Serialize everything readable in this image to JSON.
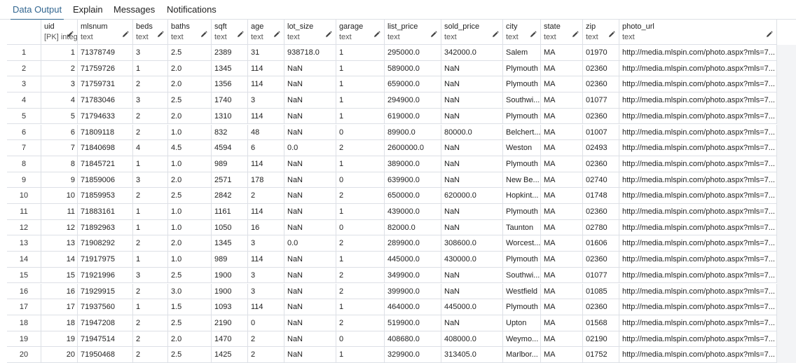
{
  "tabs": [
    {
      "label": "Data Output",
      "active": true
    },
    {
      "label": "Explain",
      "active": false
    },
    {
      "label": "Messages",
      "active": false
    },
    {
      "label": "Notifications",
      "active": false
    }
  ],
  "columns": [
    {
      "name": "uid",
      "type": "[PK] integer"
    },
    {
      "name": "mlsnum",
      "type": "text"
    },
    {
      "name": "beds",
      "type": "text"
    },
    {
      "name": "baths",
      "type": "text"
    },
    {
      "name": "sqft",
      "type": "text"
    },
    {
      "name": "age",
      "type": "text"
    },
    {
      "name": "lot_size",
      "type": "text"
    },
    {
      "name": "garage",
      "type": "text"
    },
    {
      "name": "list_price",
      "type": "text"
    },
    {
      "name": "sold_price",
      "type": "text"
    },
    {
      "name": "city",
      "type": "text"
    },
    {
      "name": "state",
      "type": "text"
    },
    {
      "name": "zip",
      "type": "text"
    },
    {
      "name": "photo_url",
      "type": "text"
    }
  ],
  "rows": [
    [
      "1",
      "1",
      "71378749",
      "3",
      "2.5",
      "2389",
      "31",
      "938718.0",
      "1",
      "295000.0",
      "342000.0",
      "Salem",
      "MA",
      "01970",
      "http://media.mlspin.com/photo.aspx?mls=7..."
    ],
    [
      "2",
      "2",
      "71759726",
      "1",
      "2.0",
      "1345",
      "114",
      "NaN",
      "1",
      "589000.0",
      "NaN",
      "Plymouth",
      "MA",
      "02360",
      "http://media.mlspin.com/photo.aspx?mls=7..."
    ],
    [
      "3",
      "3",
      "71759731",
      "2",
      "2.0",
      "1356",
      "114",
      "NaN",
      "1",
      "659000.0",
      "NaN",
      "Plymouth",
      "MA",
      "02360",
      "http://media.mlspin.com/photo.aspx?mls=7..."
    ],
    [
      "4",
      "4",
      "71783046",
      "3",
      "2.5",
      "1740",
      "3",
      "NaN",
      "1",
      "294900.0",
      "NaN",
      "Southwi...",
      "MA",
      "01077",
      "http://media.mlspin.com/photo.aspx?mls=7..."
    ],
    [
      "5",
      "5",
      "71794633",
      "2",
      "2.0",
      "1310",
      "114",
      "NaN",
      "1",
      "619000.0",
      "NaN",
      "Plymouth",
      "MA",
      "02360",
      "http://media.mlspin.com/photo.aspx?mls=7..."
    ],
    [
      "6",
      "6",
      "71809118",
      "2",
      "1.0",
      "832",
      "48",
      "NaN",
      "0",
      "89900.0",
      "80000.0",
      "Belchert...",
      "MA",
      "01007",
      "http://media.mlspin.com/photo.aspx?mls=7..."
    ],
    [
      "7",
      "7",
      "71840698",
      "4",
      "4.5",
      "4594",
      "6",
      "0.0",
      "2",
      "2600000.0",
      "NaN",
      "Weston",
      "MA",
      "02493",
      "http://media.mlspin.com/photo.aspx?mls=7..."
    ],
    [
      "8",
      "8",
      "71845721",
      "1",
      "1.0",
      "989",
      "114",
      "NaN",
      "1",
      "389000.0",
      "NaN",
      "Plymouth",
      "MA",
      "02360",
      "http://media.mlspin.com/photo.aspx?mls=7..."
    ],
    [
      "9",
      "9",
      "71859006",
      "3",
      "2.0",
      "2571",
      "178",
      "NaN",
      "0",
      "639900.0",
      "NaN",
      "New Be...",
      "MA",
      "02740",
      "http://media.mlspin.com/photo.aspx?mls=7..."
    ],
    [
      "10",
      "10",
      "71859953",
      "2",
      "2.5",
      "2842",
      "2",
      "NaN",
      "2",
      "650000.0",
      "620000.0",
      "Hopkint...",
      "MA",
      "01748",
      "http://media.mlspin.com/photo.aspx?mls=7..."
    ],
    [
      "11",
      "11",
      "71883161",
      "1",
      "1.0",
      "1161",
      "114",
      "NaN",
      "1",
      "439000.0",
      "NaN",
      "Plymouth",
      "MA",
      "02360",
      "http://media.mlspin.com/photo.aspx?mls=7..."
    ],
    [
      "12",
      "12",
      "71892963",
      "1",
      "1.0",
      "1050",
      "16",
      "NaN",
      "0",
      "82000.0",
      "NaN",
      "Taunton",
      "MA",
      "02780",
      "http://media.mlspin.com/photo.aspx?mls=7..."
    ],
    [
      "13",
      "13",
      "71908292",
      "2",
      "2.0",
      "1345",
      "3",
      "0.0",
      "2",
      "289900.0",
      "308600.0",
      "Worcest...",
      "MA",
      "01606",
      "http://media.mlspin.com/photo.aspx?mls=7..."
    ],
    [
      "14",
      "14",
      "71917975",
      "1",
      "1.0",
      "989",
      "114",
      "NaN",
      "1",
      "445000.0",
      "430000.0",
      "Plymouth",
      "MA",
      "02360",
      "http://media.mlspin.com/photo.aspx?mls=7..."
    ],
    [
      "15",
      "15",
      "71921996",
      "3",
      "2.5",
      "1900",
      "3",
      "NaN",
      "2",
      "349900.0",
      "NaN",
      "Southwi...",
      "MA",
      "01077",
      "http://media.mlspin.com/photo.aspx?mls=7..."
    ],
    [
      "16",
      "16",
      "71929915",
      "2",
      "3.0",
      "1900",
      "3",
      "NaN",
      "2",
      "399900.0",
      "NaN",
      "Westfield",
      "MA",
      "01085",
      "http://media.mlspin.com/photo.aspx?mls=7..."
    ],
    [
      "17",
      "17",
      "71937560",
      "1",
      "1.5",
      "1093",
      "114",
      "NaN",
      "1",
      "464000.0",
      "445000.0",
      "Plymouth",
      "MA",
      "02360",
      "http://media.mlspin.com/photo.aspx?mls=7..."
    ],
    [
      "18",
      "18",
      "71947208",
      "2",
      "2.5",
      "2190",
      "0",
      "NaN",
      "2",
      "519900.0",
      "NaN",
      "Upton",
      "MA",
      "01568",
      "http://media.mlspin.com/photo.aspx?mls=7..."
    ],
    [
      "19",
      "19",
      "71947514",
      "2",
      "2.0",
      "1470",
      "2",
      "NaN",
      "0",
      "408680.0",
      "408000.0",
      "Weymo...",
      "MA",
      "02190",
      "http://media.mlspin.com/photo.aspx?mls=7..."
    ],
    [
      "20",
      "20",
      "71950468",
      "2",
      "2.5",
      "1425",
      "2",
      "NaN",
      "1",
      "329900.0",
      "313405.0",
      "Marlbor...",
      "MA",
      "01752",
      "http://media.mlspin.com/photo.aspx?mls=7..."
    ]
  ],
  "colors": {
    "accent": "#326690",
    "border": "#dde0e6",
    "filler": "#f3f4f6"
  },
  "icons": {
    "column_edit": "pencil-icon"
  }
}
